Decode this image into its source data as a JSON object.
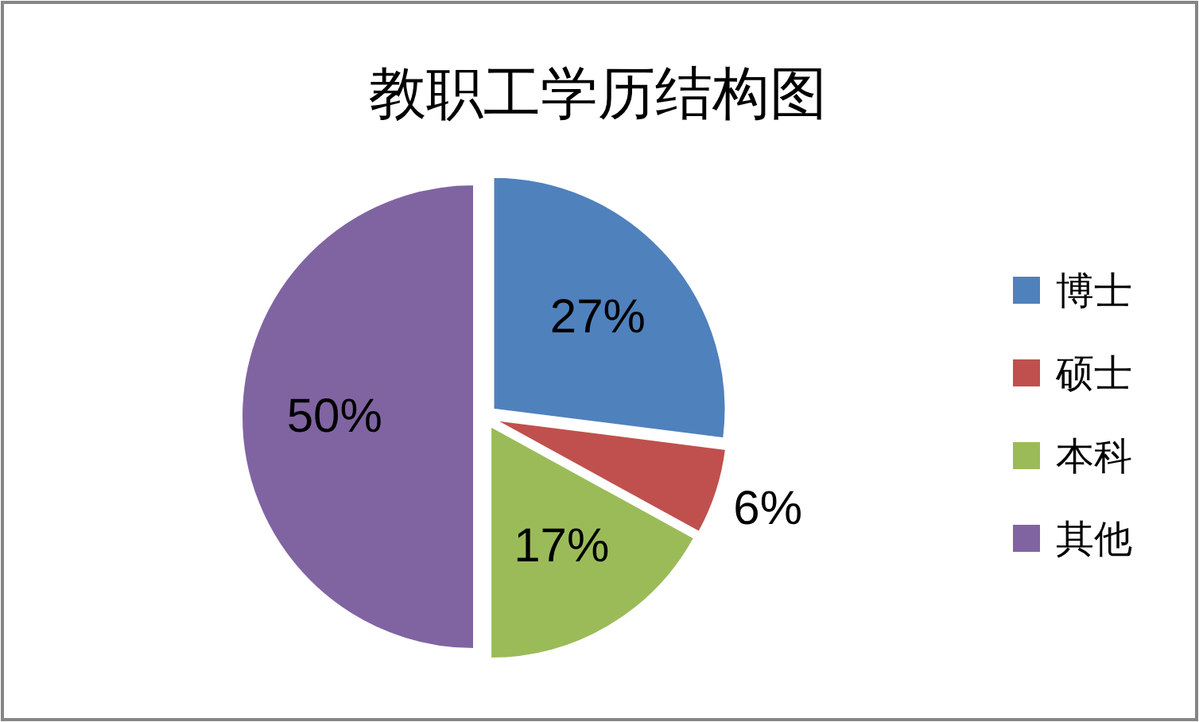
{
  "chart_data": {
    "type": "pie",
    "title": "教职工学历结构图",
    "categories": [
      "博士",
      "硕士",
      "本科",
      "其他"
    ],
    "values": [
      27,
      6,
      17,
      50
    ],
    "colors": [
      "#4f81bd",
      "#c0504d",
      "#9bbb59",
      "#8064a2"
    ],
    "value_labels": [
      "27%",
      "6%",
      "17%",
      "50%"
    ],
    "legend": "right"
  }
}
